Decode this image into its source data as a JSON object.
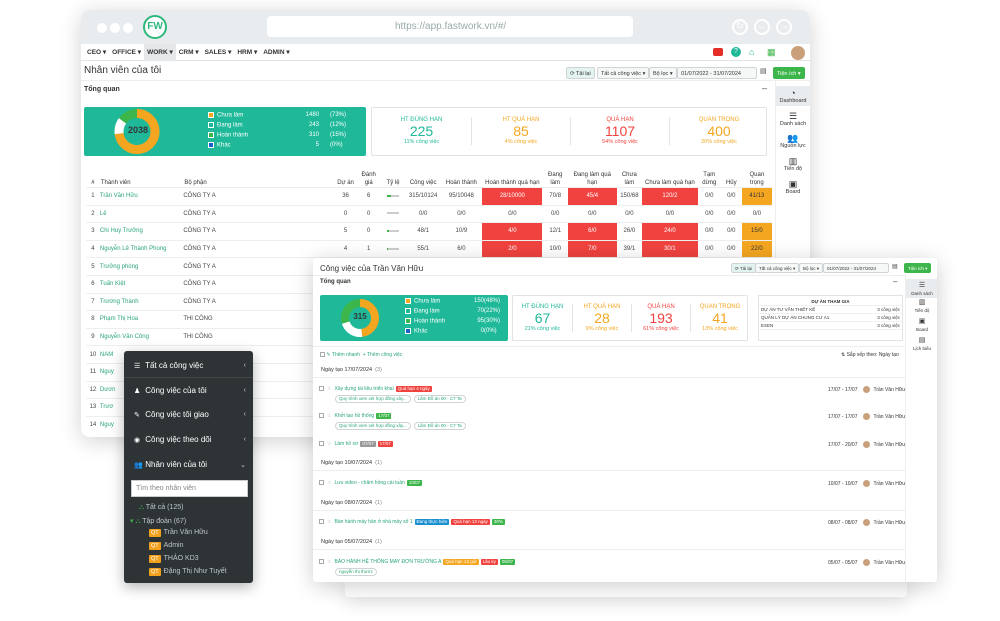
{
  "browser": {
    "url": "https://app.fastwork.vn/#/",
    "logo": "FW"
  },
  "menu": [
    "CEO ▾",
    "OFFICE ▾",
    "WORK ▾",
    "CRM ▾",
    "SALES ▾",
    "HRM ▾",
    "ADMIN ▾"
  ],
  "page": {
    "title": "Nhân viên của tôi",
    "section": "Tổng quan",
    "btn_refresh": "⟳ Tải lại",
    "btn_all": "Tất cả công việc ▾",
    "btn_filter": "Bộ lọc ▾",
    "date_range": "01/07/2022 - 31/07/2024",
    "btn_utility": "Tiện ích ▾"
  },
  "summary": {
    "total": "2038",
    "legend": [
      {
        "label": "Chưa làm",
        "value": "1480",
        "pct": "(73%)",
        "color": "#f4a620",
        "fraction": 0.73
      },
      {
        "label": "Đang làm",
        "value": "243",
        "pct": "(12%)",
        "color": "#ffffff",
        "fraction": 0.12
      },
      {
        "label": "Hoàn thành",
        "value": "310",
        "pct": "(15%)",
        "color": "#3cb54a",
        "fraction": 0.15
      },
      {
        "label": "Khác",
        "value": "5",
        "pct": "(0%)",
        "color": "#1a5fd0",
        "fraction": 0.0
      }
    ]
  },
  "stats": [
    {
      "title": "HT ĐÚNG HẠN",
      "value": "225",
      "sub": "11% công việc",
      "color": "#1fb99a"
    },
    {
      "title": "HT QUÁ HẠN",
      "value": "85",
      "sub": "4% công việc",
      "color": "#f4a620"
    },
    {
      "title": "QUÁ HẠN",
      "value": "1107",
      "sub": "54% công việc",
      "color": "#f0433f"
    },
    {
      "title": "QUAN TRỌNG",
      "value": "400",
      "sub": "20% công việc",
      "color": "#f4a620"
    }
  ],
  "table": {
    "headers": [
      "#",
      "Thành viên",
      "Bộ phận",
      "Dự án",
      "Đánh giá",
      "Tỷ lệ",
      "Công việc",
      "Hoàn thành",
      "Hoàn thành quá hạn",
      "Đang làm",
      "Đang làm quá hạn",
      "Chưa làm",
      "Chưa làm quá hạn",
      "Tạm dừng",
      "Hủy",
      "Quan trọng"
    ],
    "rows": [
      [
        "1",
        "Trần Văn Hữu",
        "CÔNG TY A",
        "36",
        "6",
        "",
        "315/10124",
        "95/10048",
        "28/10000",
        "70/8",
        "45/4",
        "150/68",
        "120/2",
        "0/0",
        "0/0",
        "41/13"
      ],
      [
        "2",
        "Lê",
        "CÔNG TY A",
        "0",
        "0",
        "",
        "0/0",
        "0/0",
        "0/0",
        "0/0",
        "0/0",
        "0/0",
        "0/0",
        "0/0",
        "0/0",
        "0/0"
      ],
      [
        "3",
        "Chi Huy Trưởng",
        "CÔNG TY A",
        "5",
        "0",
        "",
        "48/1",
        "10/9",
        "4/0",
        "12/1",
        "6/0",
        "26/0",
        "24/0",
        "0/0",
        "0/0",
        "15/0"
      ],
      [
        "4",
        "Nguyễn Lê Thành Phong",
        "CÔNG TY A",
        "4",
        "1",
        "",
        "55/1",
        "6/0",
        "2/0",
        "10/0",
        "7/0",
        "39/1",
        "30/1",
        "0/0",
        "0/0",
        "22/0"
      ],
      [
        "5",
        "Trưởng phòng",
        "CÔNG TY A",
        "",
        "",
        "",
        "",
        "",
        "",
        "",
        "",
        "",
        "",
        "",
        "",
        ""
      ],
      [
        "6",
        "Tuấn Kiệt",
        "CÔNG TY A",
        "",
        "",
        "",
        "",
        "",
        "",
        "",
        "",
        "",
        "",
        "",
        "",
        ""
      ],
      [
        "7",
        "Trương Thành",
        "CÔNG TY A",
        "",
        "",
        "",
        "",
        "",
        "",
        "",
        "",
        "",
        "",
        "",
        "",
        ""
      ],
      [
        "8",
        "Phạm Thị Hoa",
        "THI CÔNG",
        "",
        "",
        "",
        "",
        "",
        "",
        "",
        "",
        "",
        "",
        "",
        "",
        ""
      ],
      [
        "9",
        "Nguyễn Văn Công",
        "THI CÔNG",
        "",
        "",
        "",
        "",
        "",
        "",
        "",
        "",
        "",
        "",
        "",
        "",
        ""
      ],
      [
        "10",
        "NAM",
        "",
        "",
        "",
        "",
        "",
        "",
        "",
        "",
        "",
        "",
        "",
        "",
        "",
        ""
      ],
      [
        "11",
        "Nguy",
        "",
        "",
        "",
        "",
        "",
        "",
        "",
        "",
        "",
        "",
        "",
        "",
        "",
        ""
      ],
      [
        "12",
        "Dươn",
        "",
        "",
        "",
        "",
        "",
        "",
        "",
        "",
        "",
        "",
        "",
        "",
        "",
        ""
      ],
      [
        "13",
        "Trươ",
        "",
        "",
        "",
        "",
        "",
        "",
        "",
        "",
        "",
        "",
        "",
        "",
        "",
        ""
      ],
      [
        "14",
        "Nguy",
        "",
        "",
        "",
        "",
        "",
        "",
        "",
        "",
        "",
        "",
        "",
        "",
        "",
        ""
      ]
    ],
    "progress": [
      0.3,
      0,
      0.2,
      0.1
    ]
  },
  "side1": [
    "Dashboard",
    "Danh sách",
    "Nguồn lực",
    "Tiến độ",
    "Board"
  ],
  "win2": {
    "title": "Công việc của Trần Văn Hữu",
    "section": "Tổng quan",
    "btn_refresh": "⟳ Tải lại",
    "btn_all": "Tất cả công việc ▾",
    "btn_filter": "Bộ lọc ▾",
    "date_range": "01/07/2022 - 31/07/2024",
    "btn_utility": "Tiện ích ▾",
    "total": "315",
    "legend": [
      {
        "label": "Chưa làm",
        "value": "150",
        "pct": "(48%)",
        "color": "#f4a620",
        "fraction": 0.48
      },
      {
        "label": "Đang làm",
        "value": "70",
        "pct": "(22%)",
        "color": "#ffffff",
        "fraction": 0.22
      },
      {
        "label": "Hoàn thành",
        "value": "95",
        "pct": "(30%)",
        "color": "#3cb54a",
        "fraction": 0.3
      },
      {
        "label": "Khác",
        "value": "0",
        "pct": "(0%)",
        "color": "#1a5fd0",
        "fraction": 0.0
      }
    ],
    "stats": [
      {
        "title": "HT ĐÚNG HẠN",
        "value": "67",
        "sub": "21% công việc",
        "color": "#1fb99a"
      },
      {
        "title": "HT QUÁ HẠN",
        "value": "28",
        "sub": "9% công việc",
        "color": "#f4a620"
      },
      {
        "title": "QUÁ HẠN",
        "value": "193",
        "sub": "61% công việc",
        "color": "#f0433f"
      },
      {
        "title": "QUAN TRỌNG",
        "value": "41",
        "sub": "13% công việc",
        "color": "#f4a620"
      }
    ],
    "projects": {
      "header": "DỰ ÁN THAM GIA",
      "rows": [
        [
          "DỰ ÁN TƯ VẤN THIẾT KẾ",
          "3 công việc"
        ],
        [
          "QUẢN LÝ DỰ ÁN CHUNG CƯ A1",
          "3 công việc"
        ],
        [
          "ESEN",
          "3 công việc"
        ]
      ]
    },
    "add_task": "Thêm nhanh",
    "add_task2": "+ Thêm công việc",
    "sort": "⇅ Sắp xếp theo: Ngày tạo",
    "groups": [
      {
        "label": "Ngày tạo 17/07/2024",
        "count": "(3)"
      },
      {
        "label": "Ngày tạo 10/07/2024",
        "count": "(1)"
      },
      {
        "label": "Ngày tạo 08/07/2024",
        "count": "(1)"
      },
      {
        "label": "Ngày tạo 05/07/2024",
        "count": "(1)"
      }
    ],
    "tasks": [
      {
        "name": "Xây dựng tài liệu triển khai",
        "tag": "Quá hạn 4 ngày",
        "tagc": "#f0433f",
        "dates": "17/07 - 17/07",
        "user": "Trần Văn Hữu",
        "sub1": "Quy trình xem xét hợp đồng xây...",
        "sub2": "Lâm Đồ án 00 - C7 Ta"
      },
      {
        "name": "Khởi tạo hồ thống",
        "tag": "17/07",
        "tagc": "#3cb54a",
        "dates": "17/07 - 17/07",
        "user": "Trần Văn Hữu",
        "sub1": "Quy trình xem xét hợp đồng xây...",
        "sub2": "Lâm Đồ án 00 - C7 Ta"
      },
      {
        "name": "Làm hồ sơ",
        "tag": "07/07",
        "tagc": "#999999",
        "tag2": "17/07",
        "dates": "17/07 - 20/07",
        "user": "Trần Văn Hữu"
      },
      {
        "name": "Lưu video - chăm hồng cài tuần",
        "tag": "10/07",
        "tagc": "#3cb54a",
        "dates": "10/07 - 10/07",
        "user": "Trần Văn Hữu"
      },
      {
        "name": "Bàn hành máy hàn ở nhà máy số 1",
        "tag": "Đang thực hiện",
        "tagc": "#1a8fd0",
        "tag2": "Quá hạn 13 ngày",
        "tag3": "30%",
        "dates": "08/07 - 08/07",
        "user": "Trần Văn Hữu"
      },
      {
        "name": "BÁO HÀNH HỆ THỐNG MAY ĐƠN TRƯỜNG A",
        "tag": "Quá hạn 13 giờ",
        "tagc": "#f4a620",
        "tag2": "Lâu ky",
        "tag3": "05/07",
        "dates": "05/07 - 05/07",
        "user": "Trần Văn Hữu",
        "sub1": "nguyễn thị thước"
      }
    ]
  },
  "side2": [
    "Danh sách",
    "Tiến độ",
    "Board",
    "Lịch biểu"
  ],
  "darkmenu": {
    "items": [
      "Tất cả công việc",
      "Công việc tôi giao",
      "Công việc theo dõi",
      "Nhân viên của tôi"
    ],
    "first": "Tất cả công việc",
    "mine": "Công việc của tôi",
    "search_placeholder": "Tìm theo nhân viên",
    "tree_all": "Tất cả (125)",
    "tree_group": "Tập đoàn (67)",
    "tree_badge": "QT",
    "people": [
      "Trần Văn Hữu",
      "Admin",
      "THẢO KD3",
      "Đặng Thị Như Tuyết"
    ]
  }
}
